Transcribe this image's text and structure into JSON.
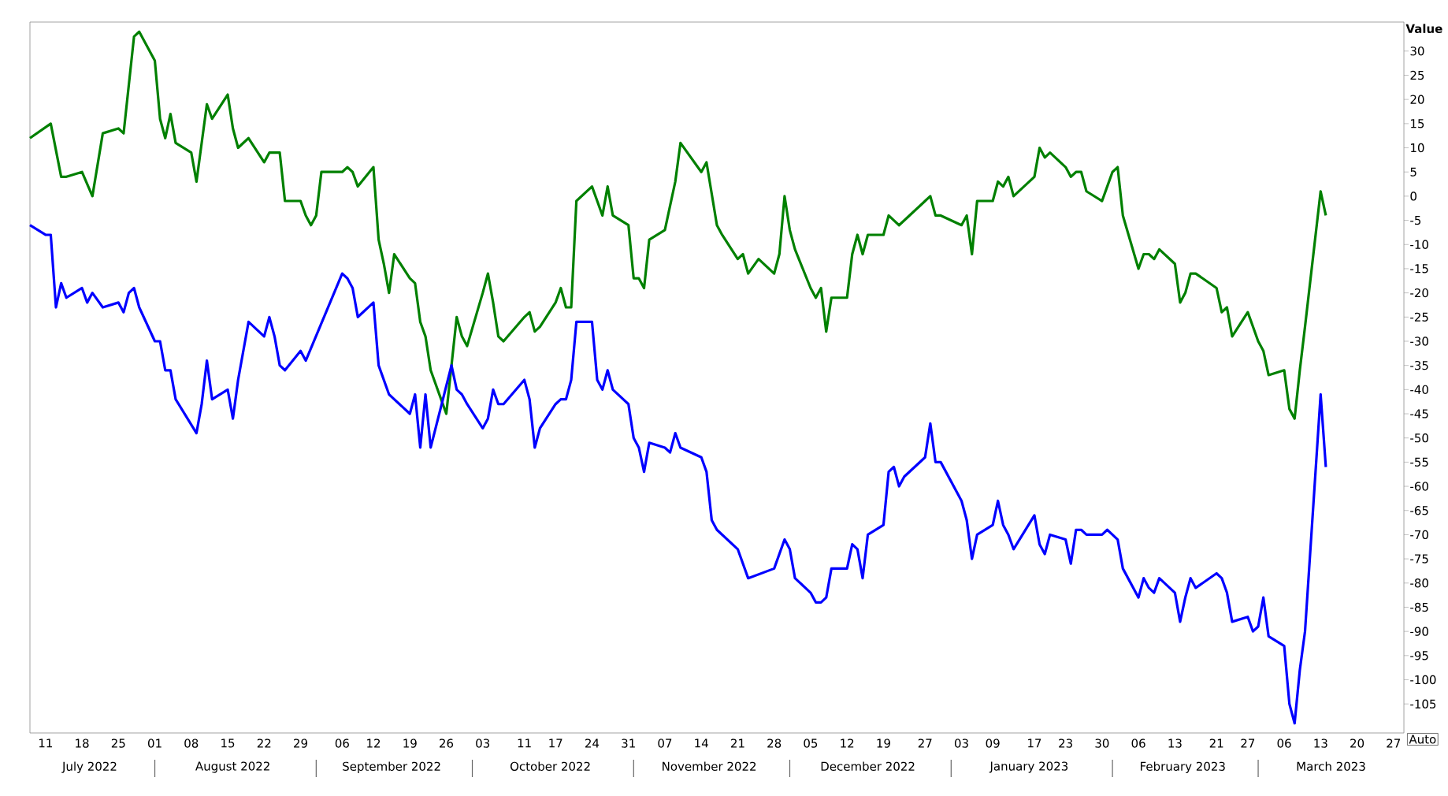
{
  "chart_data": {
    "type": "line",
    "ylabel": "Value",
    "xlim": [
      "2022-07-08",
      "2023-03-29"
    ],
    "ylim": [
      -111,
      36
    ],
    "yticks": [
      30,
      25,
      20,
      15,
      10,
      5,
      0,
      -5,
      -10,
      -15,
      -20,
      -25,
      -30,
      -35,
      -40,
      -45,
      -50,
      -55,
      -60,
      -65,
      -70,
      -75,
      -80,
      -85,
      -90,
      -95,
      -100,
      -105
    ],
    "xticks": [
      {
        "value": "2022-07-11",
        "label": "11"
      },
      {
        "value": "2022-07-18",
        "label": "18"
      },
      {
        "value": "2022-07-25",
        "label": "25"
      },
      {
        "value": "2022-08-01",
        "label": "01"
      },
      {
        "value": "2022-08-08",
        "label": "08"
      },
      {
        "value": "2022-08-15",
        "label": "15"
      },
      {
        "value": "2022-08-22",
        "label": "22"
      },
      {
        "value": "2022-08-29",
        "label": "29"
      },
      {
        "value": "2022-09-06",
        "label": "06"
      },
      {
        "value": "2022-09-12",
        "label": "12"
      },
      {
        "value": "2022-09-19",
        "label": "19"
      },
      {
        "value": "2022-09-26",
        "label": "26"
      },
      {
        "value": "2022-10-03",
        "label": "03"
      },
      {
        "value": "2022-10-11",
        "label": "11"
      },
      {
        "value": "2022-10-17",
        "label": "17"
      },
      {
        "value": "2022-10-24",
        "label": "24"
      },
      {
        "value": "2022-10-31",
        "label": "31"
      },
      {
        "value": "2022-11-07",
        "label": "07"
      },
      {
        "value": "2022-11-14",
        "label": "14"
      },
      {
        "value": "2022-11-21",
        "label": "21"
      },
      {
        "value": "2022-11-28",
        "label": "28"
      },
      {
        "value": "2022-12-05",
        "label": "05"
      },
      {
        "value": "2022-12-12",
        "label": "12"
      },
      {
        "value": "2022-12-19",
        "label": "19"
      },
      {
        "value": "2022-12-27",
        "label": "27"
      },
      {
        "value": "2023-01-03",
        "label": "03"
      },
      {
        "value": "2023-01-09",
        "label": "09"
      },
      {
        "value": "2023-01-17",
        "label": "17"
      },
      {
        "value": "2023-01-23",
        "label": "23"
      },
      {
        "value": "2023-01-30",
        "label": "30"
      },
      {
        "value": "2023-02-06",
        "label": "06"
      },
      {
        "value": "2023-02-13",
        "label": "13"
      },
      {
        "value": "2023-02-21",
        "label": "21"
      },
      {
        "value": "2023-02-27",
        "label": "27"
      },
      {
        "value": "2023-03-06",
        "label": "06"
      },
      {
        "value": "2023-03-13",
        "label": "13"
      },
      {
        "value": "2023-03-20",
        "label": "20"
      },
      {
        "value": "2023-03-27",
        "label": "27"
      }
    ],
    "annotations": [
      "July 2022",
      "August 2022",
      "September 2022",
      "October 2022",
      "November 2022",
      "December 2022",
      "January 2023",
      "February 2023",
      "March 2023",
      "Auto"
    ],
    "series": [
      {
        "color": "#008000",
        "x": [
          "2022-07-08",
          "2022-07-12",
          "2022-07-14",
          "2022-07-15",
          "2022-07-18",
          "2022-07-20",
          "2022-07-22",
          "2022-07-25",
          "2022-07-26",
          "2022-07-28",
          "2022-07-29",
          "2022-08-01",
          "2022-08-02",
          "2022-08-03",
          "2022-08-04",
          "2022-08-05",
          "2022-08-08",
          "2022-08-09",
          "2022-08-11",
          "2022-08-12",
          "2022-08-15",
          "2022-08-16",
          "2022-08-17",
          "2022-08-19",
          "2022-08-22",
          "2022-08-23",
          "2022-08-25",
          "2022-08-26",
          "2022-08-29",
          "2022-08-30",
          "2022-08-31",
          "2022-09-01",
          "2022-09-02",
          "2022-09-06",
          "2022-09-07",
          "2022-09-08",
          "2022-09-09",
          "2022-09-12",
          "2022-09-13",
          "2022-09-14",
          "2022-09-15",
          "2022-09-16",
          "2022-09-19",
          "2022-09-20",
          "2022-09-21",
          "2022-09-22",
          "2022-09-23",
          "2022-09-26",
          "2022-09-28",
          "2022-09-29",
          "2022-09-30",
          "2022-10-03",
          "2022-10-04",
          "2022-10-05",
          "2022-10-06",
          "2022-10-07",
          "2022-10-11",
          "2022-10-12",
          "2022-10-13",
          "2022-10-14",
          "2022-10-17",
          "2022-10-18",
          "2022-10-19",
          "2022-10-20",
          "2022-10-21",
          "2022-10-24",
          "2022-10-25",
          "2022-10-26",
          "2022-10-27",
          "2022-10-28",
          "2022-10-31",
          "2022-11-01",
          "2022-11-02",
          "2022-11-03",
          "2022-11-04",
          "2022-11-07",
          "2022-11-08",
          "2022-11-09",
          "2022-11-10",
          "2022-11-14",
          "2022-11-15",
          "2022-11-17",
          "2022-11-18",
          "2022-11-21",
          "2022-11-22",
          "2022-11-23",
          "2022-11-25",
          "2022-11-28",
          "2022-11-29",
          "2022-11-30",
          "2022-12-01",
          "2022-12-02",
          "2022-12-05",
          "2022-12-06",
          "2022-12-07",
          "2022-12-08",
          "2022-12-09",
          "2022-12-12",
          "2022-12-13",
          "2022-12-14",
          "2022-12-15",
          "2022-12-16",
          "2022-12-19",
          "2022-12-20",
          "2022-12-21",
          "2022-12-22",
          "2022-12-27",
          "2022-12-28",
          "2022-12-29",
          "2022-12-30",
          "2023-01-03",
          "2023-01-04",
          "2023-01-05",
          "2023-01-06",
          "2023-01-09",
          "2023-01-10",
          "2023-01-11",
          "2023-01-12",
          "2023-01-13",
          "2023-01-17",
          "2023-01-18",
          "2023-01-19",
          "2023-01-20",
          "2023-01-23",
          "2023-01-24",
          "2023-01-25",
          "2023-01-26",
          "2023-01-27",
          "2023-01-30",
          "2023-01-31",
          "2023-02-01",
          "2023-02-02",
          "2023-02-03",
          "2023-02-06",
          "2023-02-07",
          "2023-02-08",
          "2023-02-09",
          "2023-02-10",
          "2023-02-13",
          "2023-02-14",
          "2023-02-15",
          "2023-02-16",
          "2023-02-17",
          "2023-02-21",
          "2023-02-22",
          "2023-02-23",
          "2023-02-24",
          "2023-02-27",
          "2023-02-28",
          "2023-03-01",
          "2023-03-02",
          "2023-03-03",
          "2023-03-06",
          "2023-03-07",
          "2023-03-08",
          "2023-03-09",
          "2023-03-10",
          "2023-03-13",
          "2023-03-14"
        ],
        "values": [
          12,
          15,
          4,
          4,
          5,
          0,
          13,
          14,
          13,
          33,
          34,
          28,
          16,
          12,
          17,
          11,
          9,
          3,
          19,
          16,
          21,
          14,
          10,
          12,
          7,
          9,
          9,
          -1,
          -1,
          -4,
          -6,
          -4,
          5,
          5,
          6,
          5,
          2,
          6,
          -9,
          -14,
          -20,
          -12,
          -17,
          -18,
          -26,
          -29,
          -36,
          -45,
          -25,
          -29,
          -31,
          -20,
          -16,
          -22,
          -29,
          -30,
          -25,
          -24,
          -28,
          -27,
          -22,
          -19,
          -23,
          -23,
          -1,
          2,
          -1,
          -4,
          2,
          -4,
          -6,
          -17,
          -17,
          -19,
          -9,
          -7,
          -2,
          3,
          11,
          5,
          7,
          -6,
          -8,
          -13,
          -12,
          -16,
          -13,
          -16,
          -12,
          0,
          -7,
          -11,
          -19,
          -21,
          -19,
          -28,
          -21,
          -21,
          -12,
          -8,
          -12,
          -8,
          -8,
          -4,
          -5,
          -6,
          -1,
          0,
          -4,
          -4,
          -6,
          -4,
          -12,
          -1,
          -1,
          3,
          2,
          4,
          0,
          4,
          10,
          8,
          9,
          6,
          4,
          5,
          5,
          1,
          -1,
          2,
          5,
          6,
          -4,
          -15,
          -12,
          -12,
          -13,
          -11,
          -14,
          -22,
          -20,
          -16,
          -16,
          -19,
          -24,
          -23,
          -29,
          -24,
          -27,
          -30,
          -32,
          -37,
          -36,
          -44,
          -46,
          -36,
          -27,
          1,
          -4
        ]
      },
      {
        "color": "#0000ff",
        "x": [
          "2022-07-08",
          "2022-07-11",
          "2022-07-12",
          "2022-07-13",
          "2022-07-14",
          "2022-07-15",
          "2022-07-18",
          "2022-07-19",
          "2022-07-20",
          "2022-07-22",
          "2022-07-25",
          "2022-07-26",
          "2022-07-27",
          "2022-07-28",
          "2022-07-29",
          "2022-08-01",
          "2022-08-02",
          "2022-08-03",
          "2022-08-04",
          "2022-08-05",
          "2022-08-09",
          "2022-08-10",
          "2022-08-11",
          "2022-08-12",
          "2022-08-15",
          "2022-08-16",
          "2022-08-17",
          "2022-08-19",
          "2022-08-22",
          "2022-08-23",
          "2022-08-24",
          "2022-08-25",
          "2022-08-26",
          "2022-08-29",
          "2022-08-30",
          "2022-09-06",
          "2022-09-07",
          "2022-09-08",
          "2022-09-09",
          "2022-09-12",
          "2022-09-13",
          "2022-09-15",
          "2022-09-16",
          "2022-09-19",
          "2022-09-20",
          "2022-09-21",
          "2022-09-22",
          "2022-09-23",
          "2022-09-27",
          "2022-09-28",
          "2022-09-29",
          "2022-09-30",
          "2022-10-03",
          "2022-10-04",
          "2022-10-05",
          "2022-10-06",
          "2022-10-07",
          "2022-10-11",
          "2022-10-12",
          "2022-10-13",
          "2022-10-14",
          "2022-10-17",
          "2022-10-18",
          "2022-10-19",
          "2022-10-20",
          "2022-10-21",
          "2022-10-24",
          "2022-10-25",
          "2022-10-26",
          "2022-10-27",
          "2022-10-28",
          "2022-10-31",
          "2022-11-01",
          "2022-11-02",
          "2022-11-03",
          "2022-11-04",
          "2022-11-07",
          "2022-11-08",
          "2022-11-09",
          "2022-11-10",
          "2022-11-14",
          "2022-11-15",
          "2022-11-16",
          "2022-11-17",
          "2022-11-21",
          "2022-11-23",
          "2022-11-28",
          "2022-11-30",
          "2022-12-01",
          "2022-12-02",
          "2022-12-05",
          "2022-12-06",
          "2022-12-07",
          "2022-12-08",
          "2022-12-09",
          "2022-12-12",
          "2022-12-13",
          "2022-12-14",
          "2022-12-15",
          "2022-12-16",
          "2022-12-19",
          "2022-12-20",
          "2022-12-21",
          "2022-12-22",
          "2022-12-23",
          "2022-12-27",
          "2022-12-28",
          "2022-12-29",
          "2022-12-30",
          "2023-01-03",
          "2023-01-04",
          "2023-01-05",
          "2023-01-06",
          "2023-01-09",
          "2023-01-10",
          "2023-01-11",
          "2023-01-12",
          "2023-01-13",
          "2023-01-17",
          "2023-01-18",
          "2023-01-19",
          "2023-01-20",
          "2023-01-23",
          "2023-01-24",
          "2023-01-25",
          "2023-01-26",
          "2023-01-27",
          "2023-01-30",
          "2023-01-31",
          "2023-02-01",
          "2023-02-02",
          "2023-02-03",
          "2023-02-06",
          "2023-02-07",
          "2023-02-08",
          "2023-02-09",
          "2023-02-10",
          "2023-02-13",
          "2023-02-14",
          "2023-02-15",
          "2023-02-16",
          "2023-02-17",
          "2023-02-21",
          "2023-02-22",
          "2023-02-23",
          "2023-02-24",
          "2023-02-27",
          "2023-02-28",
          "2023-03-01",
          "2023-03-02",
          "2023-03-03",
          "2023-03-06",
          "2023-03-07",
          "2023-03-08",
          "2023-03-09",
          "2023-03-10",
          "2023-03-13",
          "2023-03-14"
        ],
        "values": [
          -6,
          -8,
          -8,
          -23,
          -18,
          -21,
          -19,
          -22,
          -20,
          -23,
          -22,
          -24,
          -20,
          -19,
          -23,
          -30,
          -30,
          -36,
          -36,
          -42,
          -49,
          -43,
          -34,
          -42,
          -40,
          -46,
          -38,
          -26,
          -29,
          -25,
          -29,
          -35,
          -36,
          -32,
          -34,
          -16,
          -17,
          -19,
          -25,
          -22,
          -35,
          -41,
          -42,
          -45,
          -41,
          -52,
          -41,
          -52,
          -35,
          -40,
          -41,
          -43,
          -48,
          -46,
          -40,
          -43,
          -43,
          -38,
          -42,
          -52,
          -48,
          -43,
          -42,
          -42,
          -38,
          -26,
          -26,
          -38,
          -40,
          -36,
          -40,
          -43,
          -50,
          -52,
          -57,
          -51,
          -52,
          -53,
          -49,
          -52,
          -54,
          -57,
          -67,
          -69,
          -73,
          -79,
          -77,
          -71,
          -73,
          -79,
          -82,
          -84,
          -84,
          -83,
          -77,
          -77,
          -72,
          -73,
          -79,
          -70,
          -68,
          -57,
          -56,
          -60,
          -58,
          -54,
          -47,
          -55,
          -55,
          -63,
          -67,
          -75,
          -70,
          -68,
          -63,
          -68,
          -70,
          -73,
          -66,
          -72,
          -74,
          -70,
          -71,
          -76,
          -69,
          -69,
          -70,
          -70,
          -69,
          -70,
          -71,
          -77,
          -83,
          -79,
          -81,
          -82,
          -79,
          -82,
          -88,
          -83,
          -79,
          -81,
          -78,
          -79,
          -82,
          -88,
          -87,
          -90,
          -89,
          -83,
          -91,
          -93,
          -105,
          -109,
          -98,
          -90,
          -41,
          -56
        ]
      }
    ]
  }
}
